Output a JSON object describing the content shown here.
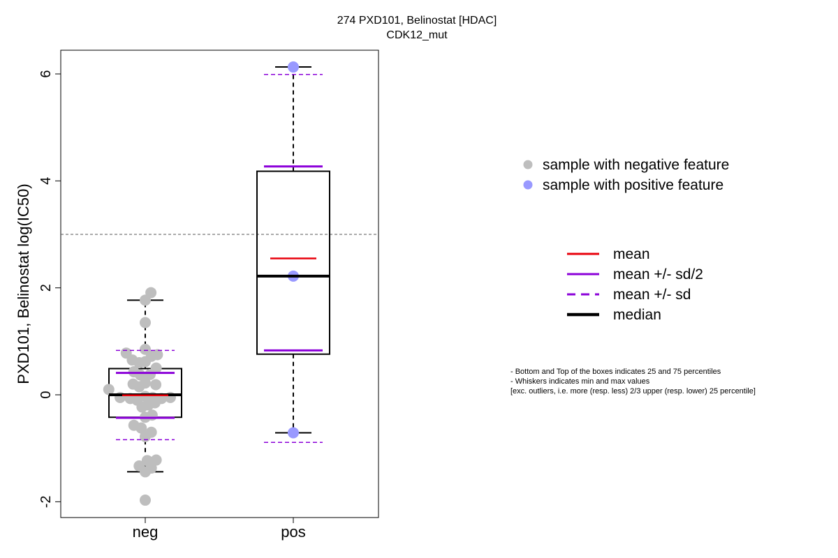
{
  "chart_data": {
    "type": "boxplot",
    "title": "274 PXD101, Belinostat [HDAC]",
    "subtitle": "CDK12_mut",
    "ylabel": "PXD101, Belinostat log(IC50)",
    "xlabel": "",
    "ylim": [
      -2.3,
      6.45
    ],
    "yticks": [
      "-2",
      "0",
      "2",
      "4",
      "6"
    ],
    "ytick_values": [
      -2,
      0,
      2,
      4,
      6
    ],
    "reference_line": 3.0,
    "categories": [
      "neg",
      "pos"
    ],
    "colors": {
      "neg_points": "#bebebe",
      "pos_points": "#9999ff",
      "mean": "#e8000b",
      "sd": "#8b00d9",
      "median": "#000000",
      "refline": "#555555"
    },
    "groups": [
      {
        "name": "neg",
        "q1": -0.42,
        "median": 0.0,
        "q3": 0.49,
        "whisker_low": -1.44,
        "whisker_high": 1.77,
        "mean": -0.01,
        "mean_minus_half_sd": -0.43,
        "mean_plus_half_sd": 0.41,
        "mean_minus_sd": -0.84,
        "mean_plus_sd": 0.83,
        "points": [
          {
            "x": -0.9,
            "y": 0.1
          },
          {
            "x": -0.62,
            "y": -0.05
          },
          {
            "x": -0.37,
            "y": -0.07
          },
          {
            "x": -0.2,
            "y": -0.1
          },
          {
            "x": 0.0,
            "y": -0.03
          },
          {
            "x": 0.18,
            "y": -0.05
          },
          {
            "x": 0.4,
            "y": -0.07
          },
          {
            "x": 0.62,
            "y": -0.05
          },
          {
            "x": -0.47,
            "y": 0.78
          },
          {
            "x": -0.32,
            "y": 0.65
          },
          {
            "x": -0.15,
            "y": 0.6
          },
          {
            "x": 0.0,
            "y": 0.62
          },
          {
            "x": 0.0,
            "y": 0.85
          },
          {
            "x": 0.15,
            "y": 0.72
          },
          {
            "x": 0.3,
            "y": 0.75
          },
          {
            "x": 0.27,
            "y": 0.5
          },
          {
            "x": -0.3,
            "y": 0.2
          },
          {
            "x": -0.15,
            "y": 0.15
          },
          {
            "x": 0.0,
            "y": 0.22
          },
          {
            "x": 0.26,
            "y": 0.19
          },
          {
            "x": -0.28,
            "y": 0.43
          },
          {
            "x": -0.12,
            "y": 0.37
          },
          {
            "x": 0.12,
            "y": 0.38
          },
          {
            "x": -0.08,
            "y": -0.23
          },
          {
            "x": 0.08,
            "y": -0.19
          },
          {
            "x": 0.24,
            "y": -0.15
          },
          {
            "x": 0.0,
            "y": -0.42
          },
          {
            "x": 0.17,
            "y": -0.38
          },
          {
            "x": -0.28,
            "y": -0.57
          },
          {
            "x": -0.1,
            "y": -0.62
          },
          {
            "x": 0.15,
            "y": -0.7
          },
          {
            "x": 0.0,
            "y": -0.78
          },
          {
            "x": 0.0,
            "y": 1.35
          },
          {
            "x": 0.0,
            "y": 1.77
          },
          {
            "x": 0.14,
            "y": 1.91
          },
          {
            "x": -0.15,
            "y": -1.33
          },
          {
            "x": 0.05,
            "y": -1.23
          },
          {
            "x": 0.27,
            "y": -1.22
          },
          {
            "x": 0.15,
            "y": -1.37
          },
          {
            "x": 0.0,
            "y": -1.44
          },
          {
            "x": 0.0,
            "y": -1.97
          }
        ]
      },
      {
        "name": "pos",
        "q1": 0.76,
        "median": 2.22,
        "q3": 4.18,
        "whisker_low": -0.71,
        "whisker_high": 6.13,
        "mean": 2.55,
        "mean_minus_half_sd": 0.83,
        "mean_plus_half_sd": 4.27,
        "mean_minus_sd": -0.89,
        "mean_plus_sd": 5.99,
        "points": [
          {
            "x": 0.0,
            "y": 6.13
          },
          {
            "x": 0.0,
            "y": 2.22
          },
          {
            "x": 0.0,
            "y": -0.71
          }
        ]
      }
    ]
  },
  "legend_points": [
    {
      "label": "sample with negative feature",
      "color": "#bebebe"
    },
    {
      "label": "sample with positive feature",
      "color": "#9999ff"
    }
  ],
  "legend_lines": [
    {
      "label": "mean",
      "color": "#e8000b",
      "style": "solid",
      "weight": "normal"
    },
    {
      "label": "mean +/- sd/2",
      "color": "#8b00d9",
      "style": "solid",
      "weight": "normal"
    },
    {
      "label": "mean +/- sd",
      "color": "#8b00d9",
      "style": "dashed",
      "weight": "normal"
    },
    {
      "label": "median",
      "color": "#000000",
      "style": "solid",
      "weight": "bold"
    }
  ],
  "notes": [
    "- Bottom and Top of the boxes indicates 25 and 75 percentiles",
    "- Whiskers indicates min and max values",
    "[exc. outliers, i.e. more (resp. less) 2/3 upper (resp. lower) 25 percentile]"
  ]
}
